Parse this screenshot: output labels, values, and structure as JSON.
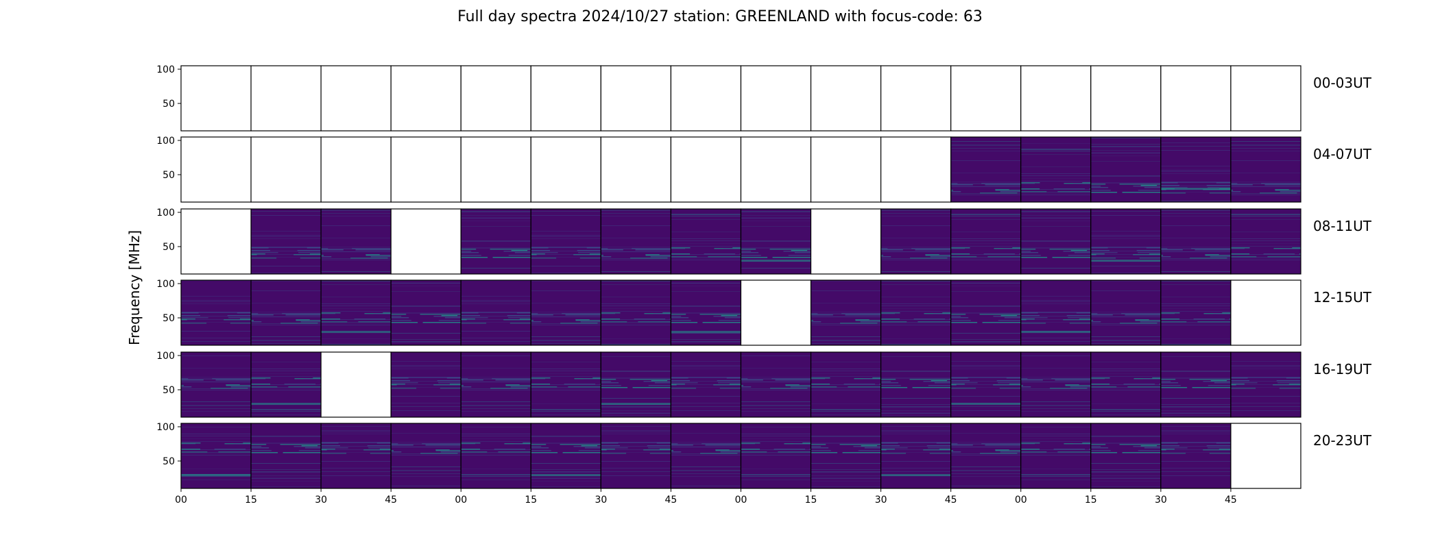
{
  "chart_data": {
    "type": "heatmap",
    "title": "Full day spectra 2024/10/27 station: GREENLAND with focus-code: 63",
    "ylabel": "Frequency [MHz]",
    "xlabel": "",
    "y_ticks": [
      "100",
      "50"
    ],
    "ylim": [
      10,
      105
    ],
    "x_ticks": [
      "00",
      "15",
      "30",
      "45",
      "00",
      "15",
      "30",
      "45",
      "00",
      "15",
      "30",
      "45",
      "00",
      "15",
      "30",
      "45"
    ],
    "panels_per_row": 16,
    "minutes_per_panel": 15,
    "colormap": "viridis",
    "rows": [
      {
        "label": "00-03UT",
        "has_data": [
          0,
          0,
          0,
          0,
          0,
          0,
          0,
          0,
          0,
          0,
          0,
          0,
          0,
          0,
          0,
          0
        ]
      },
      {
        "label": "04-07UT",
        "has_data": [
          0,
          0,
          0,
          0,
          0,
          0,
          0,
          0,
          0,
          0,
          0,
          1,
          1,
          1,
          1,
          1
        ]
      },
      {
        "label": "08-11UT",
        "has_data": [
          0,
          1,
          1,
          0,
          1,
          1,
          1,
          1,
          1,
          0,
          1,
          1,
          1,
          1,
          1,
          1
        ]
      },
      {
        "label": "12-15UT",
        "has_data": [
          1,
          1,
          1,
          1,
          1,
          1,
          1,
          1,
          0,
          1,
          1,
          1,
          1,
          1,
          1,
          0
        ]
      },
      {
        "label": "16-19UT",
        "has_data": [
          1,
          1,
          0,
          1,
          1,
          1,
          1,
          1,
          1,
          1,
          1,
          1,
          1,
          1,
          1,
          1
        ]
      },
      {
        "label": "20-23UT",
        "has_data": [
          1,
          1,
          1,
          1,
          1,
          1,
          1,
          1,
          1,
          1,
          1,
          1,
          1,
          1,
          1,
          0
        ]
      }
    ],
    "colors": {
      "background": "#440a68",
      "band_low": "#3b528b",
      "band_high": "#21918c",
      "highlight": "#5ec962"
    }
  }
}
